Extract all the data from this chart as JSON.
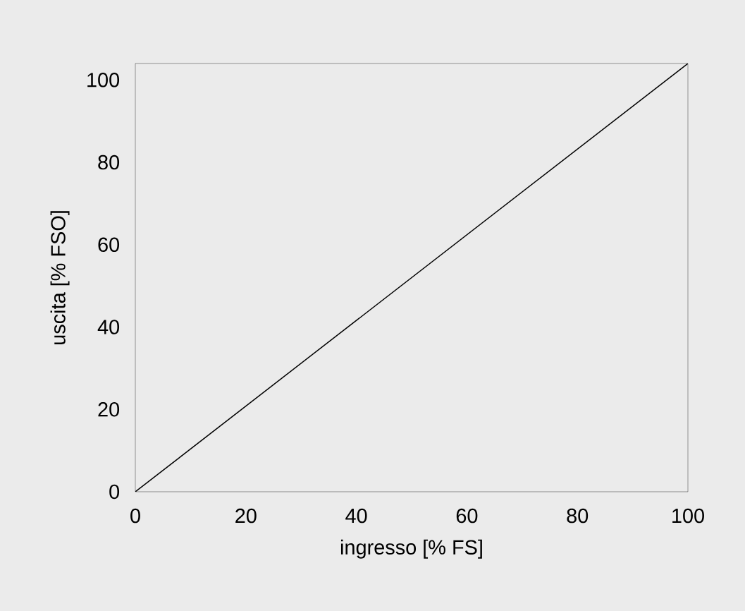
{
  "chart_data": {
    "type": "line",
    "xlabel": "ingresso [% FS]",
    "ylabel": "uscita [% FSO]",
    "x": [
      0,
      100
    ],
    "values": [
      0,
      104
    ],
    "color": "#000000",
    "xlim": [
      0,
      100
    ],
    "ylim": [
      0,
      104
    ],
    "xticks": [
      0,
      20,
      40,
      60,
      80,
      100
    ],
    "yticks": [
      0,
      20,
      40,
      60,
      80,
      100
    ]
  }
}
